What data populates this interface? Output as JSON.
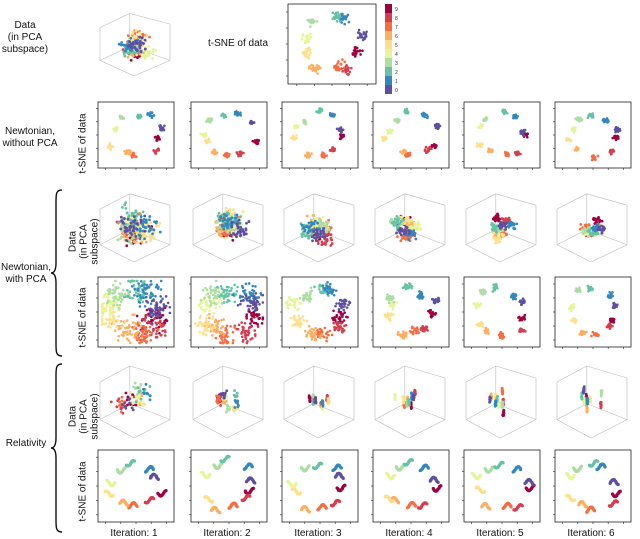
{
  "top": {
    "row_label": "Data\n(in PCA subspace)",
    "tsne_label": "t-SNE of data",
    "colorbar_ticks": [
      "0",
      "1",
      "2",
      "3",
      "4",
      "5",
      "6",
      "7",
      "8",
      "9"
    ]
  },
  "rows": {
    "newtonian_no_pca": "Newtonian,\nwithout PCA",
    "newtonian_with_pca": "Newtonian,\nwith PCA",
    "relativity": "Relativity"
  },
  "panel_labels": {
    "tsne": "t-SNE of data",
    "data_pca": "Data\n(in PCA subspace)"
  },
  "iterations": [
    "Iteration: 1",
    "Iteration: 2",
    "Iteration: 3",
    "Iteration: 4",
    "Iteration: 5",
    "Iteration: 6"
  ],
  "palette": [
    "#9e0142",
    "#d53e4f",
    "#f46d43",
    "#fdae61",
    "#fee08b",
    "#e6f598",
    "#abdda4",
    "#66c2a5",
    "#3288bd",
    "#5e4fa2"
  ]
}
